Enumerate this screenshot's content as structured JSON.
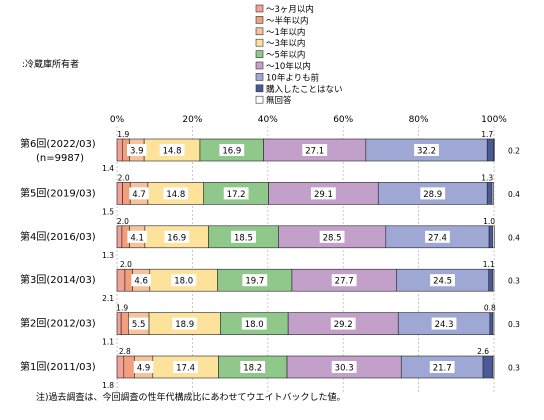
{
  "subtitle": ":冷蔵庫所有者",
  "note": "注)過去調査は、今回調査の性年代構成比にあわせてウエイトバックした値。",
  "chart_data": {
    "type": "bar",
    "stacked": "horizontal-100%",
    "xlim": [
      0,
      100
    ],
    "xticks": [
      "0%",
      "20%",
      "40%",
      "60%",
      "80%",
      "100%"
    ],
    "grid": true,
    "legend": "top-center",
    "series": [
      {
        "name": "～3ヶ月以内",
        "color": "#f2a196",
        "values": [
          1.4,
          1.5,
          1.3,
          2.1,
          1.1,
          1.8
        ]
      },
      {
        "name": "～半年以内",
        "color": "#f39f7d",
        "values": [
          1.9,
          2.0,
          2.0,
          2.0,
          1.9,
          2.8
        ]
      },
      {
        "name": "～1年以内",
        "color": "#f6c39c",
        "values": [
          3.9,
          4.7,
          4.1,
          4.6,
          5.5,
          4.9
        ]
      },
      {
        "name": "～3年以内",
        "color": "#fde29c",
        "values": [
          14.8,
          14.8,
          16.9,
          18.0,
          18.9,
          17.4
        ]
      },
      {
        "name": "～5年以内",
        "color": "#8fc88a",
        "values": [
          16.9,
          17.2,
          18.5,
          19.7,
          18.0,
          18.2
        ]
      },
      {
        "name": "～10年以内",
        "color": "#c2a0c9",
        "values": [
          27.1,
          29.1,
          28.5,
          27.7,
          29.2,
          30.3
        ]
      },
      {
        "name": "10年よりも前",
        "color": "#9fa8d4",
        "values": [
          32.2,
          28.9,
          27.4,
          24.5,
          24.3,
          21.7
        ]
      },
      {
        "name": "購入したことはない",
        "color": "#4a5a98",
        "values": [
          1.7,
          1.3,
          1.0,
          1.1,
          0.8,
          2.6
        ]
      },
      {
        "name": "無回答",
        "color": "#ffffff",
        "values": [
          0.2,
          0.4,
          0.4,
          0.3,
          0.3,
          0.3
        ]
      }
    ],
    "categories": [
      {
        "label": "第6回(2022/03)",
        "sub": "(n=9987)"
      },
      {
        "label": "第5回(2019/03)",
        "sub": ""
      },
      {
        "label": "第4回(2016/03)",
        "sub": ""
      },
      {
        "label": "第3回(2014/03)",
        "sub": ""
      },
      {
        "label": "第2回(2012/03)",
        "sub": ""
      },
      {
        "label": "第1回(2011/03)",
        "sub": ""
      }
    ]
  }
}
